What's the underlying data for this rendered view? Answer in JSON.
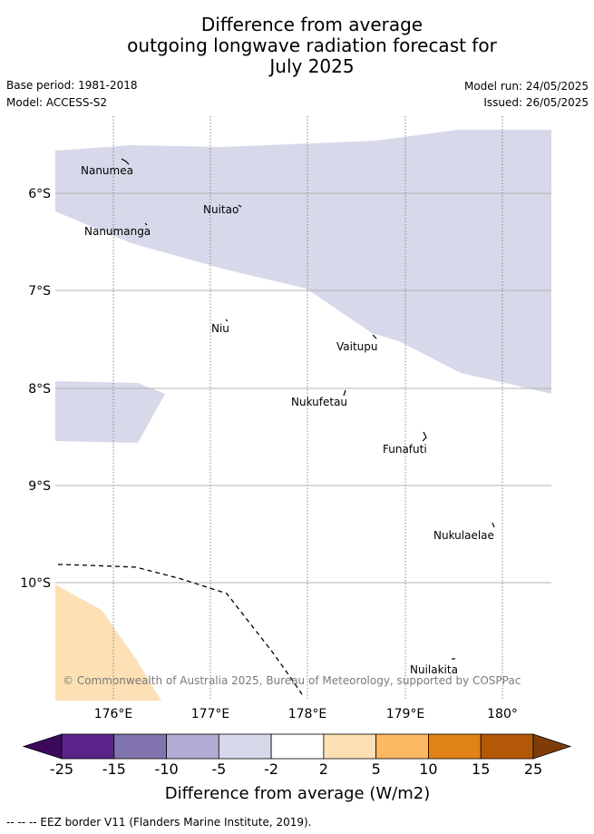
{
  "title": {
    "line1": "Difference from average",
    "line2": "outgoing longwave radiation forecast for",
    "line3": "July 2025"
  },
  "meta": {
    "base_period": "Base period: 1981-2018",
    "model": "Model: ACCESS-S2",
    "model_run": "Model run: 24/05/2025",
    "issued": "Issued: 26/05/2025"
  },
  "map": {
    "lat_labels": [
      "6°S",
      "7°S",
      "8°S",
      "9°S",
      "10°S"
    ],
    "lon_labels": [
      "176°E",
      "177°E",
      "178°E",
      "179°E",
      "180°"
    ],
    "places": [
      {
        "id": "nanumea",
        "name": "Nanumea"
      },
      {
        "id": "nuitao",
        "name": "Nuitao"
      },
      {
        "id": "nanumanga",
        "name": "Nanumanga"
      },
      {
        "id": "niu",
        "name": "Niu"
      },
      {
        "id": "vaitupu",
        "name": "Vaitupu"
      },
      {
        "id": "nukufetau",
        "name": "Nukufetau"
      },
      {
        "id": "funafuti",
        "name": "Funafuti"
      },
      {
        "id": "nukulaelae",
        "name": "Nukulaelae"
      },
      {
        "id": "nuilakita",
        "name": "Nuilakita"
      }
    ],
    "copyright": "© Commonwealth of Australia 2025, Bureau of Meteorology, supported by COSPPac",
    "anomaly_colors": {
      "negative_weak": "#d7d8e9",
      "positive_weak": "#fde0b4"
    }
  },
  "colorbar": {
    "label": "Difference from average (W/m2)",
    "ticks": [
      "-25",
      "-15",
      "-10",
      "-5",
      "-2",
      "2",
      "5",
      "10",
      "15",
      "25"
    ],
    "colors": [
      "#3d0a5b",
      "#5a2389",
      "#8174ae",
      "#b1acd3",
      "#d7d8e9",
      "#ffffff",
      "#fde0b4",
      "#fdb863",
      "#e08214",
      "#b35806",
      "#7f3b08"
    ]
  },
  "footer": {
    "legend_text": "--  --  -- EEZ border V11 (Flanders Marine Institute, 2019)."
  }
}
